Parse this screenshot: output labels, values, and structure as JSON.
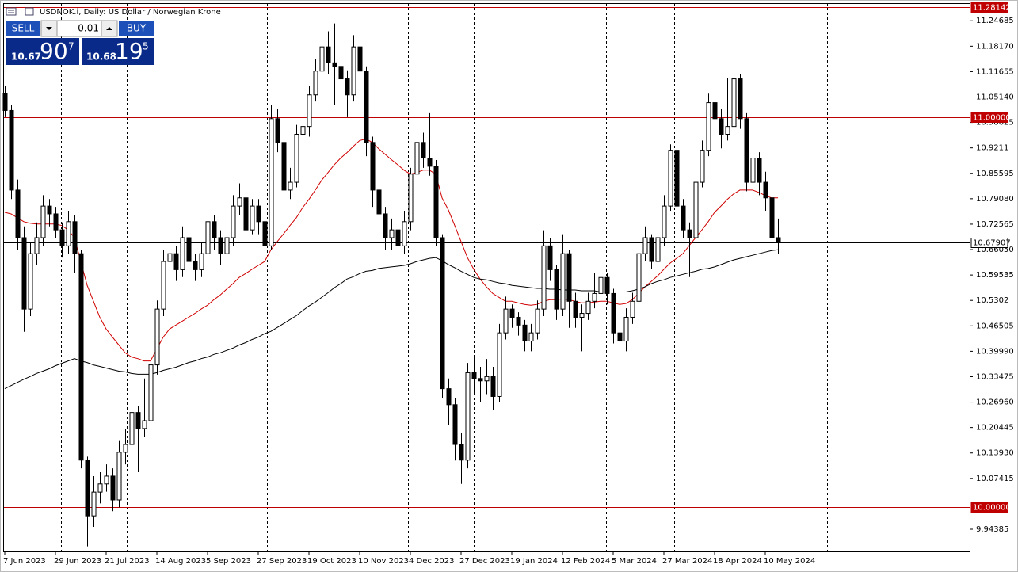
{
  "header": {
    "title": "USDNOK.i, Daily:  US Dollar / Norwegian Krone"
  },
  "trade_panel": {
    "sell": "SELL",
    "buy": "BUY",
    "lot": "0.01",
    "sell_price": {
      "prefix": "10.67",
      "big": "90",
      "small": "7"
    },
    "buy_price": {
      "prefix": "10.68",
      "big": "19",
      "small": "5"
    }
  },
  "chart_data": {
    "type": "candlestick",
    "categories": [
      "7 Jun 2023",
      null,
      null,
      null,
      null,
      null,
      null,
      null,
      "29 Jun 2023",
      null,
      null,
      null,
      null,
      null,
      null,
      null,
      "21 Jul 2023",
      null,
      null,
      null,
      null,
      null,
      null,
      null,
      "14 Aug 2023",
      null,
      null,
      null,
      null,
      null,
      null,
      null,
      "5 Sep 2023",
      null,
      null,
      null,
      null,
      null,
      null,
      null,
      "27 Sep 2023",
      null,
      null,
      null,
      null,
      null,
      null,
      null,
      "19 Oct 2023",
      null,
      null,
      null,
      null,
      null,
      null,
      null,
      "10 Nov 2023",
      null,
      null,
      null,
      null,
      null,
      null,
      null,
      "4 Dec 2023",
      null,
      null,
      null,
      null,
      null,
      null,
      null,
      "27 Dec 2023",
      null,
      null,
      null,
      null,
      null,
      null,
      null,
      "19 Jan 2024",
      null,
      null,
      null,
      null,
      null,
      null,
      null,
      "12 Feb 2024",
      null,
      null,
      null,
      null,
      null,
      null,
      null,
      "5 Mar 2024",
      null,
      null,
      null,
      null,
      null,
      null,
      null,
      "27 Mar 2024",
      null,
      null,
      null,
      null,
      null,
      null,
      null,
      "18 Apr 2024",
      null,
      null,
      null,
      null,
      null,
      null,
      null,
      "10 May 2024",
      null,
      null
    ],
    "ohlc": [
      [
        11.06,
        11.08,
        11.0,
        11.017
      ],
      [
        11.017,
        11.03,
        10.79,
        10.813
      ],
      [
        10.813,
        10.84,
        10.66,
        10.691
      ],
      [
        10.691,
        10.72,
        10.45,
        10.508
      ],
      [
        10.508,
        10.68,
        10.49,
        10.65
      ],
      [
        10.65,
        10.73,
        10.62,
        10.691
      ],
      [
        10.691,
        10.8,
        10.67,
        10.772
      ],
      [
        10.772,
        10.79,
        10.72,
        10.752
      ],
      [
        10.752,
        10.77,
        10.69,
        10.711
      ],
      [
        10.711,
        10.73,
        10.64,
        10.67
      ],
      [
        10.67,
        10.76,
        10.65,
        10.732
      ],
      [
        10.732,
        10.75,
        10.6,
        10.65
      ],
      [
        10.65,
        10.66,
        10.1,
        10.121
      ],
      [
        10.121,
        10.13,
        9.9,
        9.978
      ],
      [
        9.978,
        10.08,
        9.95,
        10.039
      ],
      [
        10.039,
        10.09,
        10.01,
        10.06
      ],
      [
        10.06,
        10.11,
        10.04,
        10.08
      ],
      [
        10.08,
        10.1,
        9.99,
        10.019
      ],
      [
        10.019,
        10.17,
        10.0,
        10.141
      ],
      [
        10.141,
        10.2,
        10.11,
        10.161
      ],
      [
        10.161,
        10.28,
        10.14,
        10.243
      ],
      [
        10.243,
        10.26,
        10.09,
        10.202
      ],
      [
        10.202,
        10.33,
        10.18,
        10.222
      ],
      [
        10.222,
        10.38,
        10.2,
        10.365
      ],
      [
        10.365,
        10.53,
        10.34,
        10.508
      ],
      [
        10.508,
        10.66,
        10.49,
        10.63
      ],
      [
        10.63,
        10.69,
        10.6,
        10.65
      ],
      [
        10.65,
        10.67,
        10.58,
        10.609
      ],
      [
        10.609,
        10.72,
        10.59,
        10.691
      ],
      [
        10.691,
        10.71,
        10.55,
        10.63
      ],
      [
        10.63,
        10.65,
        10.58,
        10.609
      ],
      [
        10.609,
        10.68,
        10.59,
        10.65
      ],
      [
        10.65,
        10.76,
        10.63,
        10.732
      ],
      [
        10.732,
        10.75,
        10.66,
        10.691
      ],
      [
        10.691,
        10.71,
        10.62,
        10.65
      ],
      [
        10.65,
        10.72,
        10.63,
        10.691
      ],
      [
        10.691,
        10.8,
        10.67,
        10.772
      ],
      [
        10.772,
        10.83,
        10.75,
        10.793
      ],
      [
        10.793,
        10.81,
        10.69,
        10.711
      ],
      [
        10.711,
        10.79,
        10.7,
        10.772
      ],
      [
        10.772,
        10.79,
        10.7,
        10.732
      ],
      [
        10.732,
        10.75,
        10.58,
        10.67
      ],
      [
        10.67,
        11.03,
        10.66,
        10.996
      ],
      [
        10.996,
        11.02,
        10.91,
        10.935
      ],
      [
        10.935,
        10.95,
        10.77,
        10.813
      ],
      [
        10.813,
        10.87,
        10.79,
        10.833
      ],
      [
        10.833,
        10.98,
        10.82,
        10.956
      ],
      [
        10.956,
        11.01,
        10.93,
        10.976
      ],
      [
        10.976,
        11.08,
        10.95,
        11.057
      ],
      [
        11.057,
        11.15,
        11.04,
        11.118
      ],
      [
        11.118,
        11.26,
        11.1,
        11.18
      ],
      [
        11.18,
        11.22,
        11.11,
        11.139
      ],
      [
        11.139,
        11.24,
        11.03,
        11.13
      ],
      [
        11.13,
        11.15,
        11.07,
        11.098
      ],
      [
        11.098,
        11.12,
        11.0,
        11.057
      ],
      [
        11.057,
        11.21,
        11.04,
        11.18
      ],
      [
        11.18,
        11.2,
        11.09,
        11.118
      ],
      [
        11.118,
        11.13,
        10.9,
        10.935
      ],
      [
        10.935,
        10.95,
        10.77,
        10.813
      ],
      [
        10.813,
        10.83,
        10.73,
        10.752
      ],
      [
        10.752,
        10.77,
        10.66,
        10.691
      ],
      [
        10.691,
        10.74,
        10.66,
        10.711
      ],
      [
        10.711,
        10.73,
        10.62,
        10.67
      ],
      [
        10.67,
        10.76,
        10.65,
        10.732
      ],
      [
        10.732,
        10.87,
        10.71,
        10.854
      ],
      [
        10.854,
        10.97,
        10.83,
        10.935
      ],
      [
        10.935,
        10.96,
        10.87,
        10.895
      ],
      [
        10.895,
        11.01,
        10.85,
        10.874
      ],
      [
        10.874,
        10.89,
        10.67,
        10.691
      ],
      [
        10.691,
        10.7,
        10.28,
        10.304
      ],
      [
        10.304,
        10.33,
        10.21,
        10.263
      ],
      [
        10.263,
        10.28,
        10.12,
        10.161
      ],
      [
        10.161,
        10.19,
        10.06,
        10.121
      ],
      [
        10.121,
        10.37,
        10.1,
        10.345
      ],
      [
        10.345,
        10.39,
        10.29,
        10.33
      ],
      [
        10.33,
        10.36,
        10.27,
        10.324
      ],
      [
        10.324,
        10.38,
        10.29,
        10.335
      ],
      [
        10.335,
        10.36,
        10.25,
        10.284
      ],
      [
        10.284,
        10.47,
        10.27,
        10.447
      ],
      [
        10.447,
        10.54,
        10.43,
        10.508
      ],
      [
        10.508,
        10.52,
        10.46,
        10.487
      ],
      [
        10.487,
        10.5,
        10.44,
        10.467
      ],
      [
        10.467,
        10.48,
        10.4,
        10.426
      ],
      [
        10.426,
        10.47,
        10.4,
        10.447
      ],
      [
        10.447,
        10.53,
        10.43,
        10.508
      ],
      [
        10.508,
        10.71,
        10.49,
        10.67
      ],
      [
        10.67,
        10.69,
        10.58,
        10.609
      ],
      [
        10.609,
        10.62,
        10.48,
        10.508
      ],
      [
        10.508,
        10.7,
        10.49,
        10.65
      ],
      [
        10.65,
        10.66,
        10.46,
        10.528
      ],
      [
        10.528,
        10.55,
        10.46,
        10.487
      ],
      [
        10.487,
        10.52,
        10.4,
        10.497
      ],
      [
        10.497,
        10.55,
        10.48,
        10.528
      ],
      [
        10.528,
        10.6,
        10.51,
        10.548
      ],
      [
        10.548,
        10.62,
        10.53,
        10.589
      ],
      [
        10.589,
        10.6,
        10.52,
        10.548
      ],
      [
        10.548,
        10.56,
        10.42,
        10.447
      ],
      [
        10.447,
        10.46,
        10.31,
        10.426
      ],
      [
        10.426,
        10.51,
        10.4,
        10.487
      ],
      [
        10.487,
        10.55,
        10.47,
        10.528
      ],
      [
        10.528,
        10.68,
        10.51,
        10.65
      ],
      [
        10.65,
        10.72,
        10.63,
        10.691
      ],
      [
        10.691,
        10.7,
        10.61,
        10.63
      ],
      [
        10.63,
        10.71,
        10.62,
        10.691
      ],
      [
        10.691,
        10.8,
        10.67,
        10.772
      ],
      [
        10.772,
        10.93,
        10.76,
        10.915
      ],
      [
        10.915,
        10.93,
        10.75,
        10.772
      ],
      [
        10.772,
        10.79,
        10.69,
        10.711
      ],
      [
        10.711,
        10.73,
        10.59,
        10.691
      ],
      [
        10.691,
        10.86,
        10.68,
        10.833
      ],
      [
        10.833,
        10.94,
        10.82,
        10.915
      ],
      [
        10.915,
        11.06,
        10.9,
        11.037
      ],
      [
        11.037,
        11.07,
        10.97,
        10.996
      ],
      [
        10.996,
        11.02,
        10.92,
        10.956
      ],
      [
        10.956,
        11.1,
        10.94,
        10.976
      ],
      [
        10.976,
        11.12,
        10.96,
        11.098
      ],
      [
        11.098,
        11.11,
        10.97,
        10.996
      ],
      [
        10.996,
        11.01,
        10.81,
        10.833
      ],
      [
        10.833,
        10.93,
        10.82,
        10.895
      ],
      [
        10.895,
        10.91,
        10.8,
        10.833
      ],
      [
        10.833,
        10.86,
        10.76,
        10.793
      ],
      [
        10.793,
        10.8,
        10.66,
        10.691
      ],
      [
        10.691,
        10.74,
        10.65,
        10.679
      ]
    ],
    "series": [
      {
        "color": "#d00000",
        "values": [
          10.756,
          10.752,
          10.742,
          10.732,
          10.728,
          10.726,
          10.726,
          10.726,
          10.726,
          10.722,
          10.711,
          10.691,
          10.63,
          10.569,
          10.528,
          10.487,
          10.457,
          10.436,
          10.416,
          10.396,
          10.385,
          10.381,
          10.375,
          10.375,
          10.406,
          10.436,
          10.457,
          10.467,
          10.477,
          10.487,
          10.497,
          10.508,
          10.518,
          10.532,
          10.544,
          10.559,
          10.573,
          10.589,
          10.599,
          10.61,
          10.62,
          10.63,
          10.66,
          10.681,
          10.701,
          10.722,
          10.742,
          10.768,
          10.789,
          10.813,
          10.838,
          10.858,
          10.878,
          10.895,
          10.909,
          10.925,
          10.94,
          10.944,
          10.935,
          10.919,
          10.905,
          10.891,
          10.878,
          10.864,
          10.854,
          10.858,
          10.864,
          10.864,
          10.854,
          10.793,
          10.762,
          10.722,
          10.681,
          10.64,
          10.61,
          10.585,
          10.565,
          10.548,
          10.538,
          10.528,
          10.528,
          10.524,
          10.52,
          10.518,
          10.52,
          10.528,
          10.532,
          10.532,
          10.534,
          10.532,
          10.528,
          10.524,
          10.524,
          10.526,
          10.528,
          10.528,
          10.524,
          10.52,
          10.522,
          10.532,
          10.548,
          10.565,
          10.579,
          10.593,
          10.61,
          10.626,
          10.638,
          10.65,
          10.671,
          10.691,
          10.711,
          10.732,
          10.756,
          10.772,
          10.789,
          10.803,
          10.813,
          10.813,
          10.813,
          10.807,
          10.799,
          10.793,
          10.793
        ]
      },
      {
        "color": "#000000",
        "values": [
          10.304,
          10.312,
          10.32,
          10.328,
          10.335,
          10.343,
          10.349,
          10.355,
          10.363,
          10.369,
          10.375,
          10.381,
          10.375,
          10.371,
          10.365,
          10.361,
          10.357,
          10.353,
          10.349,
          10.347,
          10.343,
          10.341,
          10.341,
          10.341,
          10.345,
          10.351,
          10.355,
          10.359,
          10.365,
          10.371,
          10.375,
          10.381,
          10.385,
          10.392,
          10.396,
          10.402,
          10.408,
          10.416,
          10.422,
          10.43,
          10.436,
          10.445,
          10.451,
          10.461,
          10.471,
          10.481,
          10.491,
          10.504,
          10.516,
          10.526,
          10.538,
          10.55,
          10.563,
          10.573,
          10.585,
          10.591,
          10.599,
          10.605,
          10.607,
          10.612,
          10.614,
          10.616,
          10.618,
          10.62,
          10.624,
          10.63,
          10.634,
          10.638,
          10.64,
          10.632,
          10.622,
          10.614,
          10.605,
          10.597,
          10.589,
          10.585,
          10.583,
          10.579,
          10.575,
          10.573,
          10.569,
          10.567,
          10.565,
          10.563,
          10.561,
          10.561,
          10.559,
          10.559,
          10.557,
          10.557,
          10.557,
          10.555,
          10.555,
          10.555,
          10.552,
          10.552,
          10.552,
          10.552,
          10.552,
          10.555,
          10.559,
          10.565,
          10.573,
          10.579,
          10.583,
          10.589,
          10.593,
          10.597,
          10.601,
          10.605,
          10.61,
          10.612,
          10.616,
          10.622,
          10.628,
          10.634,
          10.638,
          10.642,
          10.646,
          10.65,
          10.654,
          10.658,
          10.66
        ]
      }
    ],
    "hlines": [
      {
        "value": 11.28142,
        "label": "11.28142",
        "color": "#c00000"
      },
      {
        "value": 11,
        "label": "11.00000",
        "color": "#c00000"
      },
      {
        "value": 10,
        "label": "10.00000",
        "color": "#c00000"
      },
      {
        "value": 10.67907,
        "label": "10.67907",
        "color": "#000000"
      }
    ],
    "ylim": [
      9.887,
      11.292
    ],
    "yticks": [
      11.24685,
      {
        "value": 11.1817,
        "label": "11.18170"
      },
      11.11655,
      {
        "value": 11.0514,
        "label": "11.05140"
      },
      10.98625,
      10.9211,
      10.85595,
      {
        "value": 10.7908,
        "label": "10.79080"
      },
      10.72565,
      {
        "value": 10.6605,
        "label": "10.66050"
      },
      10.59535,
      10.5302,
      10.46505,
      {
        "value": 10.3999,
        "label": "10.39990"
      },
      10.33475,
      {
        "value": 10.2696,
        "label": "10.26960"
      },
      10.20445,
      {
        "value": 10.1393,
        "label": "10.13930"
      },
      10.07415,
      9.94385
    ],
    "bull_color": "#ffffff",
    "bear_color": "#000000"
  }
}
